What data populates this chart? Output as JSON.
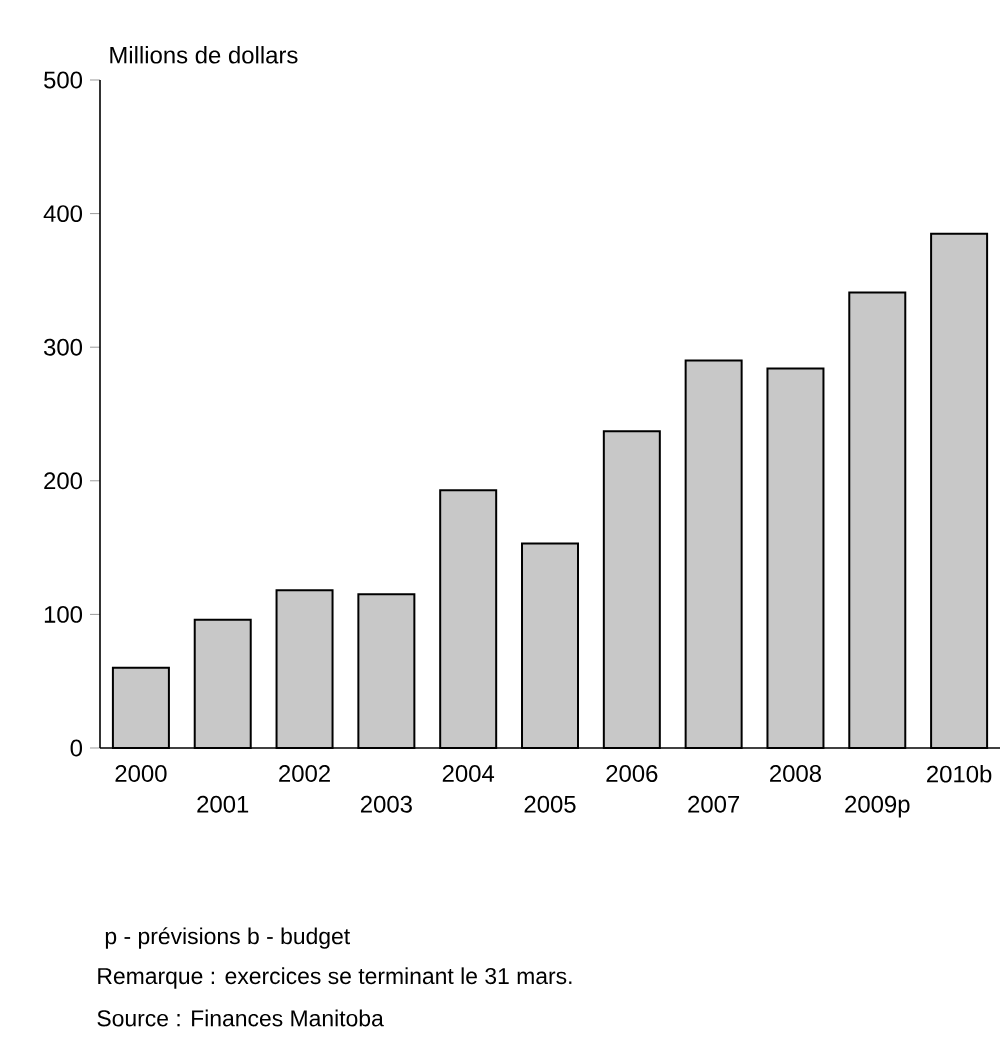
{
  "chart_data": {
    "type": "bar",
    "ylabel": "Millions de dollars",
    "categories": [
      "2000",
      "2001",
      "2002",
      "2003",
      "2004",
      "2005",
      "2006",
      "2007",
      "2008",
      "2009p",
      "2010b"
    ],
    "values": [
      60,
      96,
      118,
      115,
      193,
      153,
      237,
      290,
      284,
      341,
      385
    ],
    "color": "#c8c8c8",
    "ylim": [
      0,
      500
    ],
    "yticks": [
      0,
      100,
      200,
      300,
      400,
      500
    ],
    "grid": false,
    "annotations": [
      "p - prévisions b - budget",
      "Remarque : exercices se terminant le 31 mars.",
      "Source : Finances Manitoba"
    ]
  }
}
